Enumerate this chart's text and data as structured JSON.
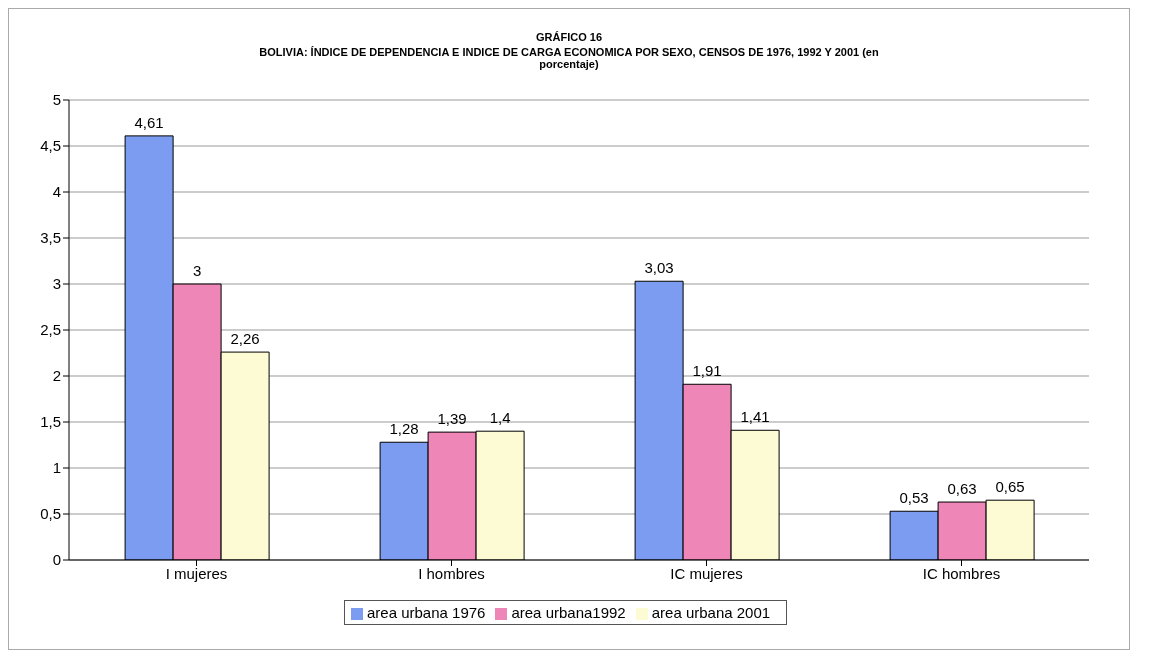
{
  "chart_data": {
    "type": "bar",
    "title": "GRÁFICO 16",
    "subtitle": "BOLIVIA: ÍNDICE DE DEPENDENCIA E INDICE DE CARGA ECONOMICA POR SEXO, CENSOS DE 1976, 1992 Y 2001 (en porcentaje)",
    "categories": [
      "I mujeres",
      "I hombres",
      "IC mujeres",
      "IC hombres"
    ],
    "series": [
      {
        "name": "area urbana 1976",
        "color": "#7b9cf0",
        "values": [
          4.61,
          1.28,
          3.03,
          0.53
        ],
        "value_labels": [
          "4,61",
          "1,28",
          "3,03",
          "0,53"
        ]
      },
      {
        "name": "area urbana1992",
        "color": "#ee86b8",
        "values": [
          3,
          1.39,
          1.91,
          0.63
        ],
        "value_labels": [
          "3",
          "1,39",
          "1,91",
          "0,63"
        ]
      },
      {
        "name": "area urbana 2001",
        "color": "#fdfbd4",
        "values": [
          2.26,
          1.4,
          1.41,
          0.65
        ],
        "value_labels": [
          "2,26",
          "1,4",
          "1,41",
          "0,65"
        ]
      }
    ],
    "ylim": [
      0,
      5
    ],
    "yticks": [
      {
        "value": 0,
        "label": "0"
      },
      {
        "value": 0.5,
        "label": "0,5"
      },
      {
        "value": 1,
        "label": "1"
      },
      {
        "value": 1.5,
        "label": "1,5"
      },
      {
        "value": 2,
        "label": "2"
      },
      {
        "value": 2.5,
        "label": "2,5"
      },
      {
        "value": 3,
        "label": "3"
      },
      {
        "value": 3.5,
        "label": "3,5"
      },
      {
        "value": 4,
        "label": "4"
      },
      {
        "value": 4.5,
        "label": "4,5"
      },
      {
        "value": 5,
        "label": "5"
      }
    ],
    "grid": "y",
    "legend": "bottom"
  }
}
